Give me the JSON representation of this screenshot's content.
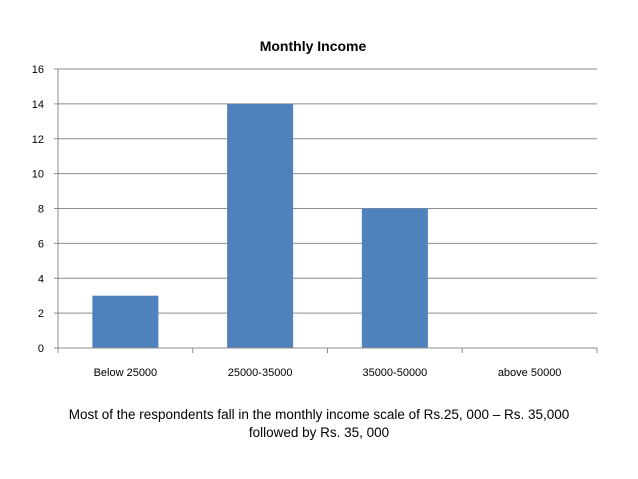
{
  "chart_data": {
    "type": "bar",
    "title": "Monthly Income",
    "categories": [
      "Below 25000",
      "25000-35000",
      "35000-50000",
      "above 50000"
    ],
    "values": [
      3,
      14,
      8,
      0
    ],
    "xlabel": "",
    "ylabel": "",
    "ylim": [
      0,
      16
    ],
    "yticks": [
      "0",
      "2",
      "4",
      "6",
      "8",
      "10",
      "12",
      "14",
      "16"
    ],
    "grid": true,
    "legend": "none",
    "bar_color": "#4f81bd"
  },
  "caption": {
    "line1": "Most of the respondents fall in the monthly income scale of Rs.25, 000 – Rs. 35,000",
    "line2": "followed by Rs. 35, 000"
  }
}
